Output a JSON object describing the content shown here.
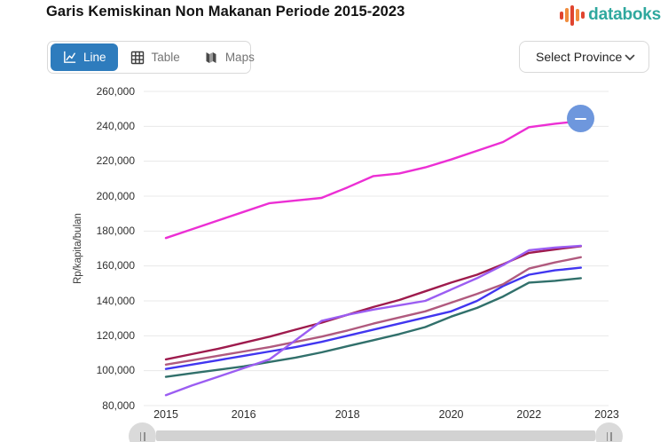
{
  "header": {
    "title": "Garis Kemiskinan Non Makanan Periode 2015-2023",
    "logo_text": "databoks"
  },
  "toolbar": {
    "tabs": [
      {
        "label": "Line",
        "active": true
      },
      {
        "label": "Table",
        "active": false
      },
      {
        "label": "Maps",
        "active": false
      }
    ],
    "province_selector_label": "Select Province"
  },
  "icons": {
    "line_tab": "line-chart-icon",
    "table_tab": "table-grid-icon",
    "maps_tab": "folded-map-icon",
    "select": "chevron-down-icon",
    "slider_handles": "grip-double-bar-icon",
    "end_marker_glyph": "minus"
  },
  "colors": {
    "accent_blue": "#2e7cbd",
    "logo_teal": "#2fa89e",
    "logo_red": "#e0452f",
    "logo_orange": "#f08c3e",
    "marker_blue": "#6e97dd",
    "grid": "#e8e8e8",
    "axis_text": "#2f2f2f",
    "muted_text": "#757575",
    "border": "#d9d9d9",
    "slider": "#d2d2d2",
    "handle": "#dadada"
  },
  "chart_data": {
    "type": "line",
    "title": "Garis Kemiskinan Non Makanan Periode 2015-2023",
    "xlabel": "",
    "ylabel": "Rp/kapita/bulan",
    "ylim": [
      80000,
      260000
    ],
    "y_tick_step": 20000,
    "grid": "horizontal-only",
    "legend": "none",
    "x_unit": "semiannual-index (Mar/Sep 2015-2023)",
    "y_ticks": [
      {
        "label": "260,000",
        "value": 260000
      },
      {
        "label": "240,000",
        "value": 240000
      },
      {
        "label": "220,000",
        "value": 220000
      },
      {
        "label": "200,000",
        "value": 200000
      },
      {
        "label": "180,000",
        "value": 180000
      },
      {
        "label": "160,000",
        "value": 160000
      },
      {
        "label": "140,000",
        "value": 140000
      },
      {
        "label": "120,000",
        "value": 120000
      },
      {
        "label": "100,000",
        "value": 100000
      },
      {
        "label": "80,000",
        "value": 80000
      }
    ],
    "x_ticks": [
      {
        "label": "2015",
        "pos": 0
      },
      {
        "label": "2016",
        "pos": 3
      },
      {
        "label": "2018",
        "pos": 7
      },
      {
        "label": "2020",
        "pos": 11
      },
      {
        "label": "2022",
        "pos": 14
      },
      {
        "label": "2023",
        "pos": 17
      }
    ],
    "series": [
      {
        "name": "teal",
        "color": "#31706b",
        "values": [
          96500,
          98500,
          100500,
          102500,
          105000,
          107500,
          110500,
          114000,
          117500,
          121000,
          125000,
          131000,
          136000,
          142500,
          150500,
          151500,
          153000
        ]
      },
      {
        "name": "blue",
        "color": "#4136f0",
        "values": [
          101000,
          103500,
          106000,
          108500,
          111000,
          113500,
          116500,
          120000,
          123500,
          127000,
          130500,
          134000,
          140000,
          148500,
          155000,
          157500,
          159000
        ]
      },
      {
        "name": "rose",
        "color": "#b05a7e",
        "values": [
          103500,
          106000,
          108500,
          111000,
          113500,
          116500,
          119500,
          123000,
          127000,
          130500,
          134000,
          139000,
          144000,
          149500,
          158500,
          162000,
          165000
        ]
      },
      {
        "name": "dark-red",
        "color": "#9e1b4d",
        "values": [
          106500,
          109500,
          112500,
          116000,
          119500,
          123500,
          127500,
          132000,
          136500,
          140500,
          145500,
          150500,
          155000,
          161000,
          167500,
          169500,
          171300
        ]
      },
      {
        "name": "violet",
        "color": "#9b5df2",
        "values": [
          86000,
          91500,
          96500,
          101500,
          106500,
          117500,
          128500,
          132000,
          135000,
          137500,
          140000,
          146500,
          153000,
          160500,
          169000,
          170500,
          171600
        ]
      },
      {
        "name": "magenta",
        "color": "#ec2fd4",
        "values": [
          176000,
          181000,
          186000,
          191000,
          196000,
          197500,
          199000,
          205000,
          211500,
          213000,
          216500,
          221000,
          226000,
          231000,
          239500,
          241500,
          243000
        ]
      }
    ],
    "end_marker": {
      "series": "magenta",
      "color": "#6e97dd",
      "glyph": "minus"
    }
  }
}
